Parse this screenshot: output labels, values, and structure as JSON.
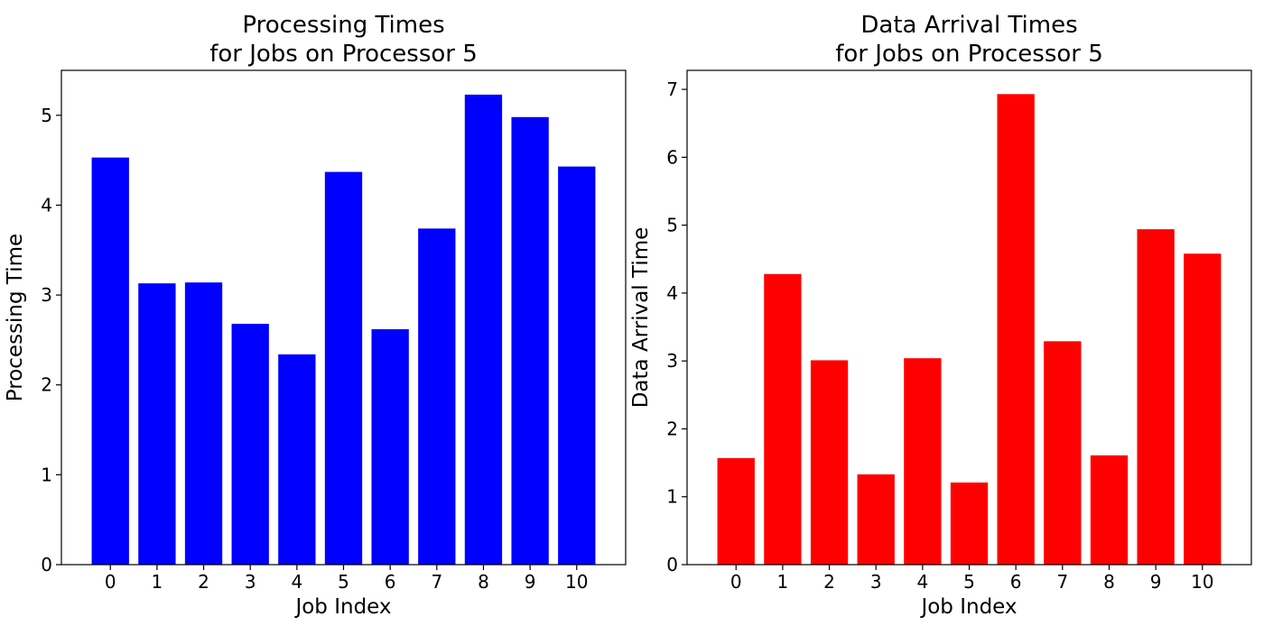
{
  "chart_data": [
    {
      "type": "bar",
      "title": [
        "Processing Times",
        "for Jobs on Processor 5"
      ],
      "xlabel": "Job Index",
      "ylabel": "Processing Time",
      "categories": [
        "0",
        "1",
        "2",
        "3",
        "4",
        "5",
        "6",
        "7",
        "8",
        "9",
        "10"
      ],
      "values": [
        4.53,
        3.13,
        3.14,
        2.68,
        2.34,
        4.37,
        2.62,
        3.74,
        5.23,
        4.98,
        4.43
      ],
      "yticks": [
        0,
        1,
        2,
        3,
        4,
        5
      ],
      "ylim": [
        0,
        5.5
      ],
      "color": "#0000ff",
      "grid": false
    },
    {
      "type": "bar",
      "title": [
        "Data Arrival Times",
        "for Jobs on Processor 5"
      ],
      "xlabel": "Job Index",
      "ylabel": "Data Arrival Time",
      "categories": [
        "0",
        "1",
        "2",
        "3",
        "4",
        "5",
        "6",
        "7",
        "8",
        "9",
        "10"
      ],
      "values": [
        1.57,
        4.28,
        3.01,
        1.33,
        3.04,
        1.21,
        6.93,
        3.29,
        1.61,
        4.94,
        4.58
      ],
      "yticks": [
        0,
        1,
        2,
        3,
        4,
        5,
        6,
        7
      ],
      "ylim": [
        0,
        7.28
      ],
      "color": "#ff0000",
      "grid": false
    }
  ]
}
